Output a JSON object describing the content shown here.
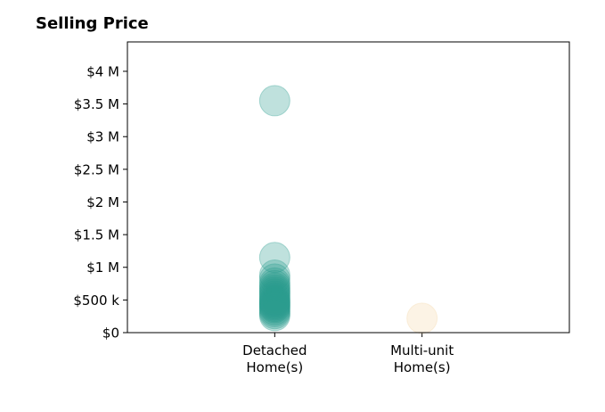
{
  "chart_data": {
    "type": "scatter",
    "title": "Selling Price",
    "xlabel": "",
    "ylabel": "",
    "categories": [
      {
        "line1": "Detached",
        "line2": "Home(s)"
      },
      {
        "line1": "Multi-unit",
        "line2": "Home(s)"
      }
    ],
    "y_ticks": [
      {
        "value": 0,
        "label": "$0"
      },
      {
        "value": 500000,
        "label": "$500 k"
      },
      {
        "value": 1000000,
        "label": "$1 M"
      },
      {
        "value": 1500000,
        "label": "$1.5 M"
      },
      {
        "value": 2000000,
        "label": "$2 M"
      },
      {
        "value": 2500000,
        "label": "$2.5 M"
      },
      {
        "value": 3000000,
        "label": "$3 M"
      },
      {
        "value": 3500000,
        "label": "$3.5 M"
      },
      {
        "value": 4000000,
        "label": "$4 M"
      }
    ],
    "ylim": [
      0,
      4450000
    ],
    "xlim": [
      -1,
      2
    ],
    "grid": false,
    "series": [
      {
        "color": "#2a9d8f",
        "category_index": 0,
        "values": [
          3550000,
          1150000,
          880000,
          820000,
          760000,
          720000,
          680000,
          650000,
          620000,
          590000,
          560000,
          530000,
          500000,
          480000,
          460000,
          440000,
          420000,
          400000,
          380000,
          350000,
          320000,
          290000,
          260000
        ]
      },
      {
        "color": "#f4d8a8",
        "category_index": 1,
        "values": [
          220000
        ]
      }
    ]
  }
}
